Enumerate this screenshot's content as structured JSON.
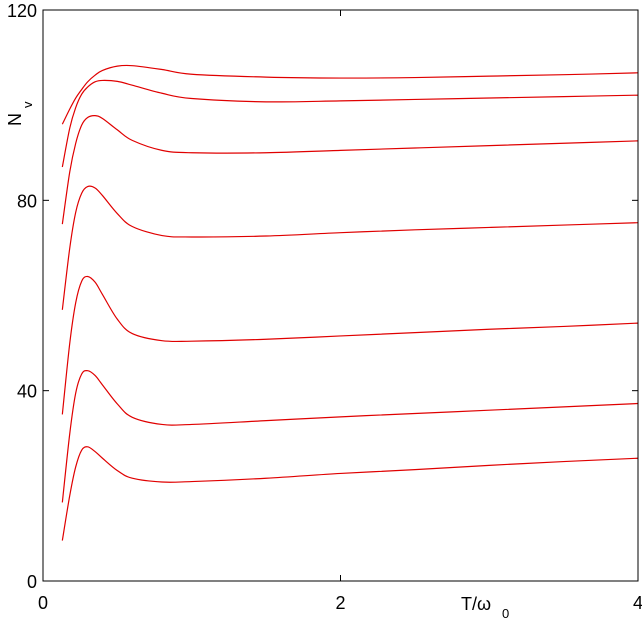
{
  "chart_data": {
    "type": "line",
    "title": "",
    "xlabel": {
      "main": "T/ω",
      "sub": "0"
    },
    "ylabel": {
      "main": "N",
      "sub": "v"
    },
    "xlim": [
      0,
      4
    ],
    "ylim": [
      0,
      120
    ],
    "x_ticks": [
      0,
      2,
      4
    ],
    "y_ticks": [
      0,
      40,
      80,
      120
    ],
    "x_tick_labels": [
      "0",
      "2",
      "4"
    ],
    "y_tick_labels": [
      "0",
      "40",
      "80",
      "120"
    ],
    "grid": false,
    "legend": "none",
    "line_color": "#e00000",
    "series": [
      {
        "x": [
          0.13,
          0.18,
          0.22,
          0.26,
          0.3,
          0.35,
          0.4,
          0.5,
          0.6,
          0.8,
          1.0,
          1.5,
          2.0,
          2.5,
          3.0,
          3.5,
          4.0
        ],
        "y": [
          8.5,
          18,
          24,
          27.5,
          28.2,
          27.2,
          25.8,
          23.2,
          21.6,
          20.8,
          20.9,
          21.6,
          22.6,
          23.4,
          24.3,
          25.1,
          25.8
        ]
      },
      {
        "x": [
          0.13,
          0.18,
          0.22,
          0.26,
          0.3,
          0.35,
          0.4,
          0.5,
          0.6,
          0.8,
          1.0,
          1.5,
          2.0,
          2.5,
          3.0,
          3.5,
          4.0
        ],
        "y": [
          16.5,
          31,
          39.5,
          43.5,
          44.2,
          43.2,
          41.2,
          37.2,
          34.4,
          32.9,
          32.9,
          33.7,
          34.5,
          35.2,
          35.9,
          36.6,
          37.3
        ]
      },
      {
        "x": [
          0.13,
          0.18,
          0.22,
          0.26,
          0.3,
          0.35,
          0.4,
          0.5,
          0.6,
          0.8,
          1.0,
          1.5,
          2.0,
          2.5,
          3.0,
          3.5,
          4.0
        ],
        "y": [
          35,
          50,
          58.5,
          63,
          64,
          62.8,
          60.2,
          55,
          52,
          50.5,
          50.4,
          50.8,
          51.5,
          52.2,
          52.9,
          53.5,
          54.2
        ]
      },
      {
        "x": [
          0.13,
          0.18,
          0.22,
          0.26,
          0.3,
          0.35,
          0.4,
          0.5,
          0.6,
          0.8,
          1.0,
          1.5,
          2.0,
          2.5,
          3.0,
          3.5,
          4.0
        ],
        "y": [
          57,
          70,
          77.5,
          81.5,
          82.9,
          82.6,
          81,
          77.2,
          74.5,
          72.6,
          72.3,
          72.5,
          73.2,
          73.8,
          74.3,
          74.8,
          75.3
        ]
      },
      {
        "x": [
          0.13,
          0.18,
          0.22,
          0.26,
          0.3,
          0.35,
          0.4,
          0.5,
          0.6,
          0.8,
          1.0,
          1.5,
          2.0,
          2.5,
          3.0,
          3.5,
          4.0
        ],
        "y": [
          75,
          86,
          92,
          95.8,
          97.4,
          97.8,
          97.2,
          94.8,
          92.6,
          90.5,
          90,
          90,
          90.5,
          91,
          91.5,
          92,
          92.5
        ]
      },
      {
        "x": [
          0.13,
          0.18,
          0.22,
          0.26,
          0.3,
          0.35,
          0.4,
          0.5,
          0.6,
          0.8,
          1.0,
          1.5,
          2.0,
          2.5,
          3.0,
          3.5,
          4.0
        ],
        "y": [
          87,
          95.2,
          99.5,
          102.3,
          103.8,
          104.9,
          105.2,
          105,
          104.2,
          102.5,
          101.4,
          100.7,
          100.9,
          101.2,
          101.5,
          101.8,
          102.1
        ]
      },
      {
        "x": [
          0.13,
          0.18,
          0.22,
          0.26,
          0.3,
          0.35,
          0.4,
          0.5,
          0.6,
          0.8,
          1.0,
          1.5,
          2.0,
          2.5,
          3.0,
          3.5,
          4.0
        ],
        "y": [
          96,
          99.2,
          101.5,
          103.3,
          104.9,
          106.3,
          107.3,
          108.2,
          108.3,
          107.5,
          106.5,
          105.9,
          105.7,
          105.8,
          106.1,
          106.4,
          106.8
        ]
      }
    ]
  }
}
